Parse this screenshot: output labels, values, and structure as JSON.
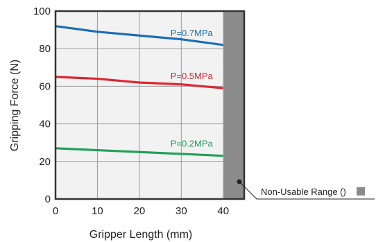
{
  "chart_data": {
    "type": "line",
    "title": "",
    "xlabel": "Gripper Length (mm)",
    "ylabel": "Gripping Force (N)",
    "xlim": [
      0,
      45
    ],
    "ylim": [
      0,
      100
    ],
    "x_ticks": [
      0,
      10,
      20,
      30,
      40
    ],
    "y_ticks": [
      0,
      20,
      40,
      60,
      80,
      100
    ],
    "grid": true,
    "series": [
      {
        "name": "P=0.7MPa",
        "color": "#1a6fb5",
        "x": [
          0,
          10,
          20,
          30,
          40
        ],
        "y": [
          92,
          89,
          87,
          85,
          82
        ]
      },
      {
        "name": "P=0.5MPa",
        "color": "#e0262e",
        "x": [
          0,
          10,
          20,
          30,
          40
        ],
        "y": [
          65,
          64,
          62,
          61,
          59
        ]
      },
      {
        "name": "P=0.2MPa",
        "color": "#1fa05a",
        "x": [
          0,
          10,
          20,
          30,
          40
        ],
        "y": [
          27,
          26,
          25,
          24,
          23
        ]
      }
    ],
    "non_usable_range": {
      "from": 40,
      "to": 45,
      "color": "#8c8c8c"
    },
    "annotation": {
      "text": "Non-Usable Range (",
      "suffix": ")"
    }
  }
}
